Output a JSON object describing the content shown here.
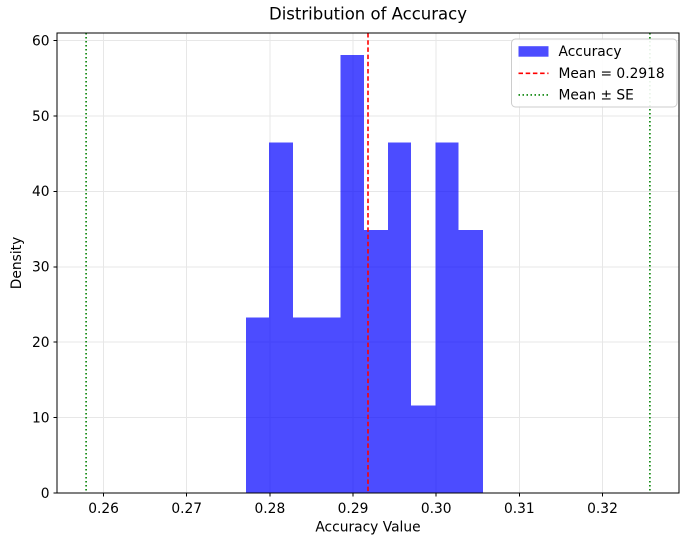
{
  "chart_data": {
    "type": "bar",
    "title": "Distribution of Accuracy",
    "xlabel": "Accuracy Value",
    "ylabel": "Density",
    "xlim": [
      0.2544,
      0.3292
    ],
    "ylim": [
      0,
      61
    ],
    "grid": true,
    "legend_position": "upper right",
    "x_ticks": [
      {
        "value": 0.26,
        "label": "0.26"
      },
      {
        "value": 0.27,
        "label": "0.27"
      },
      {
        "value": 0.28,
        "label": "0.28"
      },
      {
        "value": 0.29,
        "label": "0.29"
      },
      {
        "value": 0.3,
        "label": "0.30"
      },
      {
        "value": 0.31,
        "label": "0.31"
      },
      {
        "value": 0.32,
        "label": "0.32"
      }
    ],
    "y_ticks": [
      {
        "value": 0,
        "label": "0"
      },
      {
        "value": 10,
        "label": "10"
      },
      {
        "value": 20,
        "label": "20"
      },
      {
        "value": 30,
        "label": "30"
      },
      {
        "value": 40,
        "label": "40"
      },
      {
        "value": 50,
        "label": "50"
      },
      {
        "value": 60,
        "label": "60"
      }
    ],
    "histogram": {
      "bin_edges": [
        0.2771,
        0.2799,
        0.2828,
        0.2856,
        0.2885,
        0.2913,
        0.2942,
        0.297,
        0.2999,
        0.3027,
        0.3056
      ],
      "densities": [
        23.24,
        46.49,
        23.24,
        23.24,
        58.11,
        34.87,
        46.49,
        11.62,
        46.49,
        34.87
      ]
    },
    "mean_line": {
      "value": 0.2918,
      "color": "#ff0000",
      "style": "dashed"
    },
    "se_lines": {
      "values": [
        0.2579,
        0.3257
      ],
      "color": "#008000",
      "style": "dotted"
    },
    "legend": {
      "entries": [
        {
          "label": "Accuracy",
          "marker": "patch",
          "color": "#0000ff",
          "alpha": 0.7
        },
        {
          "label": "Mean = 0.2918",
          "marker": "dashed-line",
          "color": "#ff0000"
        },
        {
          "label": "Mean ± SE",
          "marker": "dotted-line",
          "color": "#008000"
        }
      ]
    },
    "colors": {
      "bar": "#0000ff",
      "bar_alpha": 0.7,
      "grid": "#e7e7e7",
      "spine": "#000000",
      "text": "#000000",
      "legend_border": "#cccccc",
      "background": "#ffffff"
    }
  }
}
